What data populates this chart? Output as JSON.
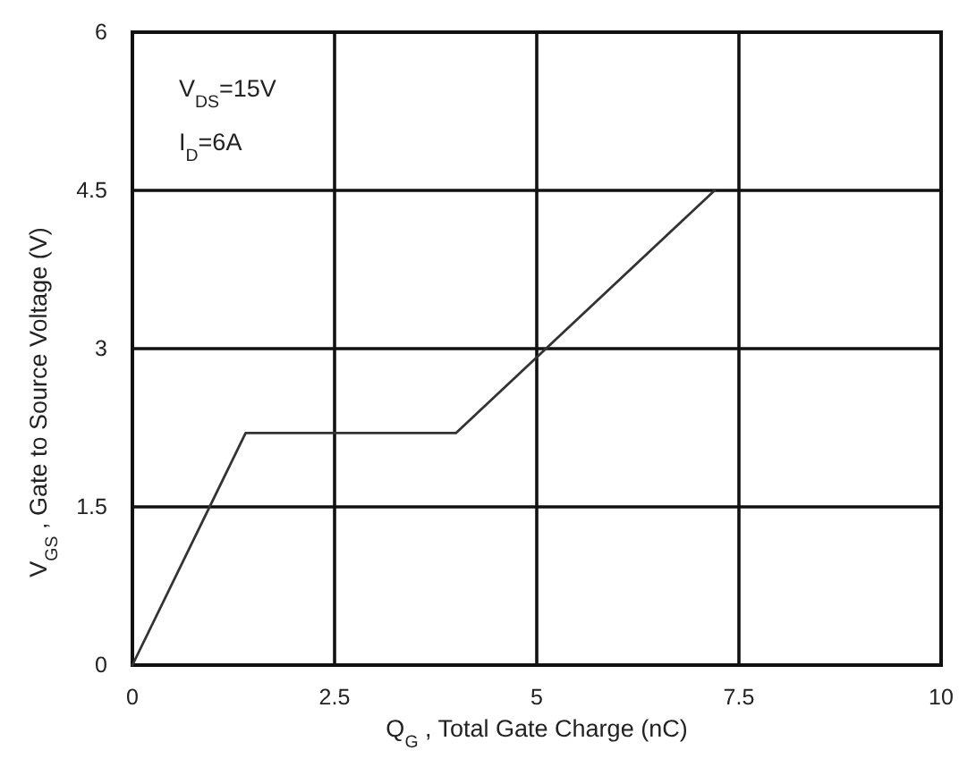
{
  "chart_data": {
    "type": "line",
    "xlabel": "Q$_{G}$ , Total Gate Charge (nC)",
    "ylabel": "V$_{GS}$ , Gate to Source Voltage (V)",
    "annotations": [
      "V$_{DS}$=15V",
      "I$_{D}$=6A"
    ],
    "x": [
      0,
      1.4,
      4,
      7.2
    ],
    "series": [
      {
        "color": "#333333",
        "values": [
          0,
          2.2,
          2.2,
          4.5
        ]
      }
    ],
    "xlim": [
      0,
      10
    ],
    "ylim": [
      0,
      6
    ],
    "xticks": [
      0,
      2.5,
      5,
      7.5,
      10
    ],
    "yticks": [
      0,
      1.5,
      3,
      4.5,
      6
    ],
    "grid": true
  }
}
